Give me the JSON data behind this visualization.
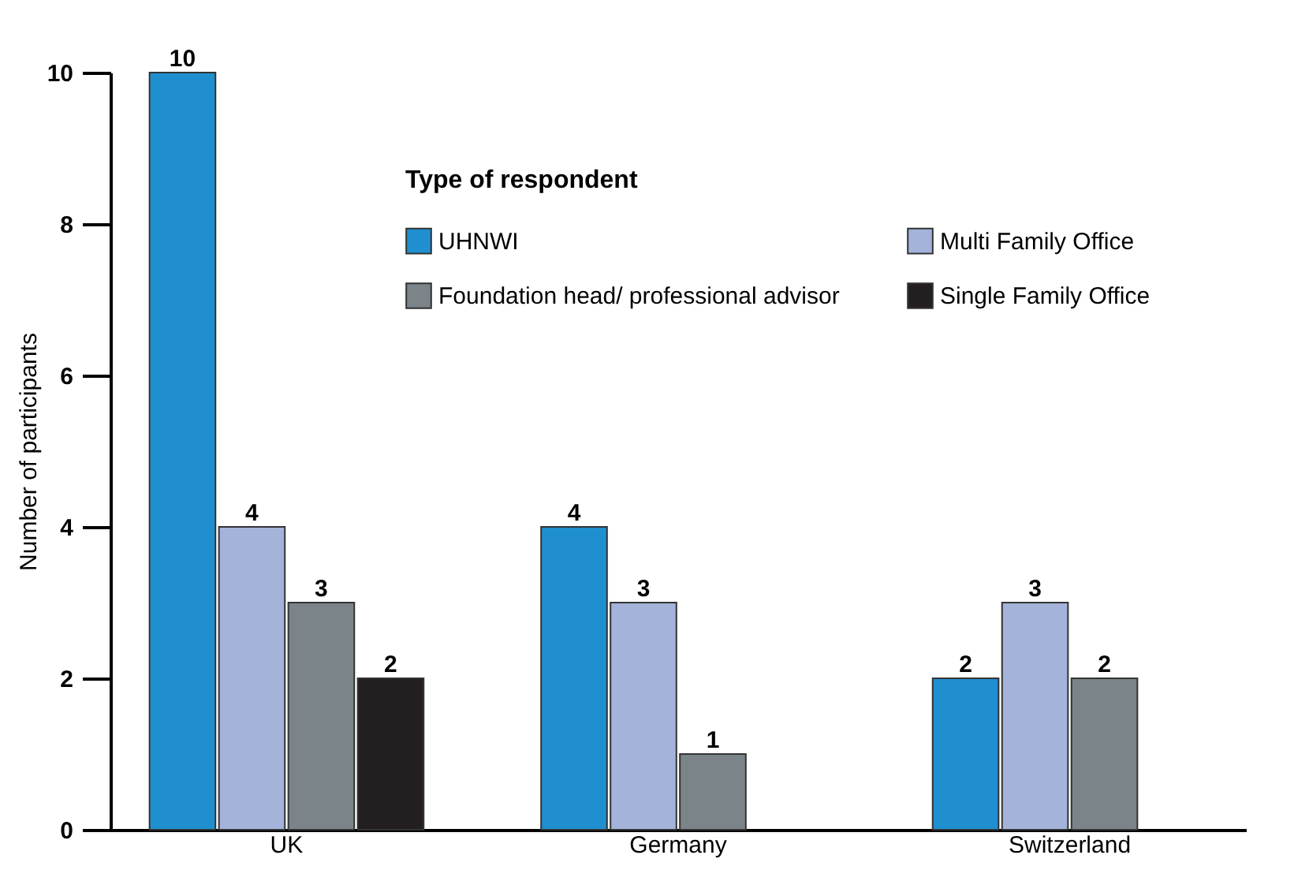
{
  "chart_data": {
    "type": "bar",
    "ylabel": "Number of participants",
    "legend_title": "Type of respondent",
    "categories": [
      "UK",
      "Germany",
      "Switzerland"
    ],
    "series": [
      {
        "name": "UHNWI",
        "color": "#1f8fd0",
        "values": [
          10,
          4,
          2
        ]
      },
      {
        "name": "Multi Family Office",
        "color": "#a3b3da",
        "values": [
          4,
          3,
          3
        ]
      },
      {
        "name": "Foundation head/ professional advisor",
        "color": "#7a8489",
        "values": [
          3,
          1,
          2
        ]
      },
      {
        "name": "Single Family Office",
        "color": "#231f20",
        "values": [
          2,
          null,
          null
        ]
      }
    ],
    "ylim": [
      0,
      10
    ],
    "yticks": [
      0,
      2,
      4,
      6,
      8,
      10
    ],
    "grid": false,
    "legend": "top right",
    "data_labels": true
  }
}
